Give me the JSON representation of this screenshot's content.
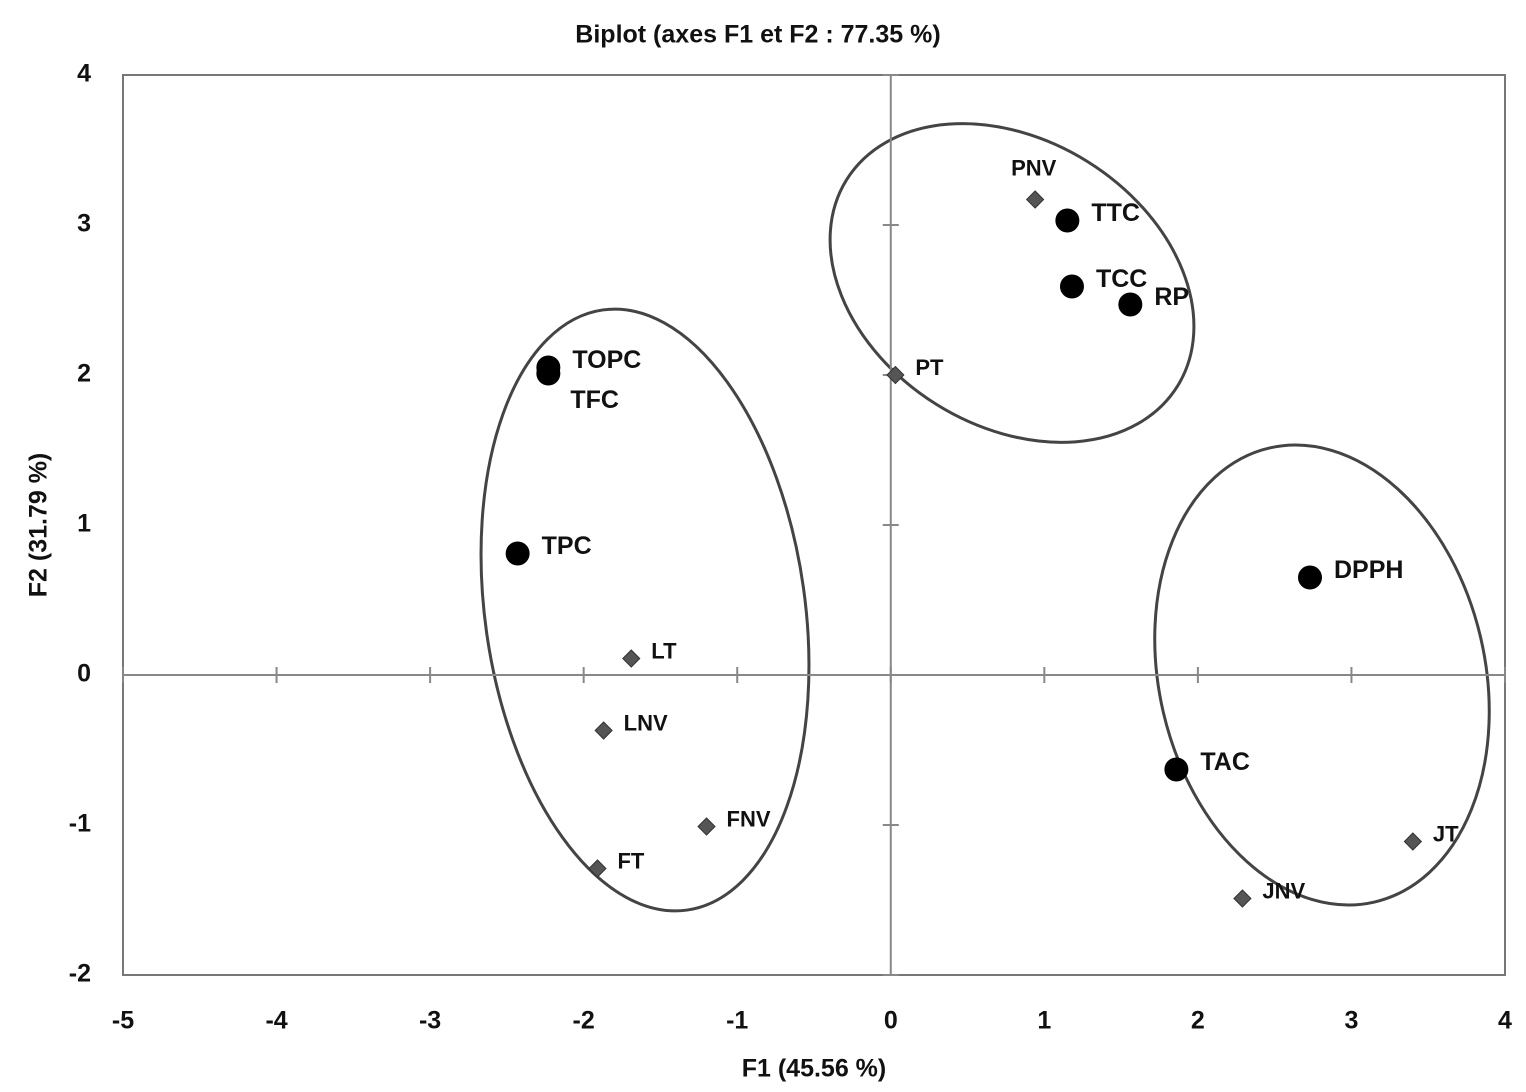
{
  "chart_data": {
    "type": "scatter",
    "title": "Biplot (axes F1 et F2 : 77.35 %)",
    "x_label": "F1 (45.56 %)",
    "y_label": "F2 (31.79 %)",
    "xlim": [
      -5,
      4
    ],
    "ylim": [
      -2,
      4
    ],
    "xticks": [
      -5,
      -4,
      -3,
      -2,
      -1,
      0,
      1,
      2,
      3,
      4
    ],
    "yticks": [
      -2,
      -1,
      0,
      1,
      2,
      3,
      4
    ],
    "grid": false,
    "series": [
      {
        "marker": "circle",
        "color": "#000000",
        "labels": [
          "TTC",
          "TCC",
          "RP",
          "TOPC",
          "TFC",
          "TPC",
          "DPPH",
          "TAC"
        ],
        "x": [
          1.15,
          1.18,
          1.56,
          -2.23,
          -2.23,
          -2.43,
          2.73,
          1.86
        ],
        "values": [
          3.03,
          2.59,
          2.47,
          2.05,
          2.01,
          0.81,
          0.65,
          -0.63
        ]
      },
      {
        "marker": "diamond",
        "color": "#555555",
        "labels": [
          "PNV",
          "PT",
          "LT",
          "LNV",
          "FNV",
          "FT",
          "JNV",
          "JT"
        ],
        "x": [
          0.94,
          0.03,
          -1.69,
          -1.87,
          -1.2,
          -1.91,
          2.29,
          3.4
        ],
        "values": [
          3.17,
          2.0,
          0.11,
          -0.37,
          -1.01,
          -1.29,
          -1.49,
          -1.11
        ]
      }
    ]
  }
}
